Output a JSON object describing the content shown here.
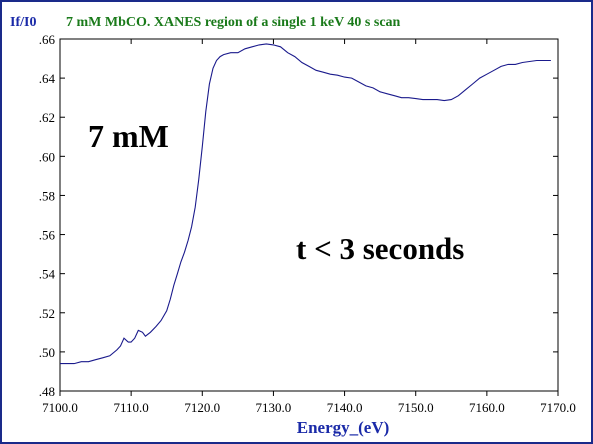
{
  "chart_data": {
    "type": "line",
    "ylabel": "If/I0",
    "title": "7 mM MbCO. XANES region of a single 1 keV 40 s scan",
    "xlabel": "Energy_(eV)",
    "xlim": [
      7100.0,
      7170.0
    ],
    "ylim": [
      0.48,
      0.66
    ],
    "xticks": [
      "7100.0",
      "7110.0",
      "7120.0",
      "7130.0",
      "7140.0",
      "7150.0",
      "7160.0",
      "7170.0"
    ],
    "yticks": [
      ".48",
      ".50",
      ".52",
      ".54",
      ".56",
      ".58",
      ".60",
      ".62",
      ".64",
      ".66"
    ],
    "grid": false,
    "annotations": [
      "7 mM",
      "t < 3 seconds"
    ],
    "colors": {
      "line": "#1a1a8c",
      "axis": "#000000",
      "ylabel": "#1a2aa8",
      "title": "#1a7a1a",
      "xlabel": "#1a2aa8"
    },
    "series": [
      {
        "x": [
          7100.0,
          7101.0,
          7102.0,
          7103.0,
          7104.0,
          7105.0,
          7106.0,
          7107.0,
          7108.0,
          7108.5,
          7109.0,
          7109.6,
          7110.0,
          7110.5,
          7111.0,
          7111.6,
          7112.0,
          7112.7,
          7113.5,
          7114.2,
          7115.0,
          7115.5,
          7116.0,
          7116.5,
          7117.0,
          7117.5,
          7118.0,
          7118.5,
          7119.0,
          7119.5,
          7120.0,
          7120.5,
          7121.0,
          7121.5,
          7122.0,
          7122.5,
          7123.0,
          7124.0,
          7125.0,
          7126.0,
          7127.0,
          7128.0,
          7129.0,
          7130.0,
          7131.0,
          7132.0,
          7133.0,
          7134.0,
          7135.0,
          7136.0,
          7137.0,
          7138.0,
          7139.0,
          7140.0,
          7141.0,
          7142.0,
          7143.0,
          7144.0,
          7145.0,
          7146.0,
          7147.0,
          7148.0,
          7149.0,
          7150.0,
          7151.0,
          7152.0,
          7153.0,
          7154.0,
          7155.0,
          7156.0,
          7157.0,
          7158.0,
          7159.0,
          7160.0,
          7161.0,
          7162.0,
          7163.0,
          7164.0,
          7165.0,
          7166.0,
          7167.0,
          7168.0,
          7169.0
        ],
        "y": [
          0.494,
          0.494,
          0.494,
          0.495,
          0.495,
          0.496,
          0.497,
          0.498,
          0.501,
          0.503,
          0.507,
          0.505,
          0.505,
          0.507,
          0.511,
          0.51,
          0.508,
          0.51,
          0.513,
          0.516,
          0.521,
          0.527,
          0.534,
          0.54,
          0.546,
          0.551,
          0.557,
          0.564,
          0.574,
          0.588,
          0.605,
          0.623,
          0.637,
          0.645,
          0.649,
          0.651,
          0.652,
          0.653,
          0.653,
          0.655,
          0.656,
          0.657,
          0.6575,
          0.657,
          0.656,
          0.653,
          0.651,
          0.648,
          0.646,
          0.644,
          0.643,
          0.642,
          0.6415,
          0.6405,
          0.64,
          0.638,
          0.636,
          0.635,
          0.633,
          0.632,
          0.631,
          0.63,
          0.63,
          0.6295,
          0.629,
          0.629,
          0.629,
          0.6285,
          0.629,
          0.631,
          0.634,
          0.637,
          0.64,
          0.642,
          0.644,
          0.646,
          0.647,
          0.647,
          0.648,
          0.6485,
          0.649,
          0.649,
          0.649
        ]
      }
    ]
  }
}
